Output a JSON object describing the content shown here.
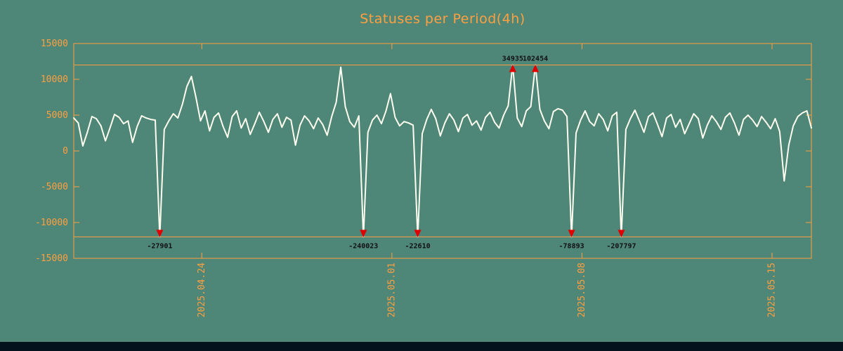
{
  "page": {
    "background": "#4e8678",
    "footer_color": "#03121c"
  },
  "chart_data": {
    "type": "line",
    "title": "Statuses per Period(4h)",
    "title_color": "#ffa040",
    "axis_color": "#ffa040",
    "series_color": "#fffff0",
    "marker_color": "#e00000",
    "annotation_text_color": "#111111",
    "legend": "none",
    "grid": "off",
    "ylim": [
      -15000,
      15000
    ],
    "clip_level": 12000,
    "period_hours": 4,
    "y_ticks": [
      15000,
      10000,
      5000,
      0,
      -5000,
      -10000,
      -15000
    ],
    "x_ticks": [
      {
        "label": "2025.04.24",
        "index": 28.3
      },
      {
        "label": "2025.05.01",
        "index": 70.3
      },
      {
        "label": "2025.05.08",
        "index": 112.3
      },
      {
        "label": "2025.05.15",
        "index": 154.3
      }
    ],
    "values": [
      4600,
      3900,
      700,
      2600,
      4800,
      4500,
      3500,
      1400,
      3200,
      5100,
      4700,
      3800,
      4200,
      1200,
      3400,
      4900,
      4600,
      4400,
      4300,
      -27901,
      3000,
      4200,
      5200,
      4600,
      6500,
      9000,
      10400,
      7500,
      4200,
      5600,
      2800,
      4700,
      5300,
      3400,
      1900,
      4800,
      5600,
      3200,
      4500,
      2300,
      3800,
      5400,
      4100,
      2600,
      4400,
      5200,
      3300,
      4700,
      4300,
      800,
      3600,
      4900,
      4200,
      3100,
      4600,
      3700,
      2200,
      4800,
      6800,
      11700,
      6200,
      4100,
      3300,
      4900,
      -240023,
      2600,
      4300,
      5000,
      3800,
      5600,
      8000,
      4700,
      3500,
      4100,
      3900,
      3600,
      -22610,
      2400,
      4400,
      5800,
      4500,
      2100,
      3900,
      5200,
      4300,
      2700,
      4600,
      5100,
      3600,
      4200,
      2900,
      4700,
      5400,
      4000,
      3200,
      5000,
      6300,
      34935,
      4600,
      3400,
      5600,
      6200,
      102454,
      5800,
      4200,
      3100,
      5500,
      5900,
      5700,
      4800,
      -78893,
      2500,
      4300,
      5600,
      4100,
      3500,
      5200,
      4400,
      2800,
      4900,
      5400,
      -207797,
      3000,
      4500,
      5700,
      4200,
      2600,
      4800,
      5300,
      3700,
      2000,
      4600,
      5100,
      3300,
      4400,
      2400,
      3800,
      5200,
      4500,
      1800,
      3600,
      4900,
      4100,
      3000,
      4700,
      5300,
      3900,
      2200,
      4400,
      5000,
      4300,
      3400,
      4800,
      4000,
      3100,
      4500,
      2700,
      -4200,
      800,
      3500,
      4800,
      5300,
      5600,
      3200
    ],
    "annotations": [
      {
        "label": "-27901",
        "index": 19,
        "direction": "down"
      },
      {
        "label": "-240023",
        "index": 64,
        "direction": "down"
      },
      {
        "label": "-22610",
        "index": 76,
        "direction": "down"
      },
      {
        "label": "34935",
        "index": 97,
        "direction": "up"
      },
      {
        "label": "102454",
        "index": 102,
        "direction": "up"
      },
      {
        "label": "-78893",
        "index": 110,
        "direction": "down"
      },
      {
        "label": "-207797",
        "index": 121,
        "direction": "down"
      }
    ]
  }
}
